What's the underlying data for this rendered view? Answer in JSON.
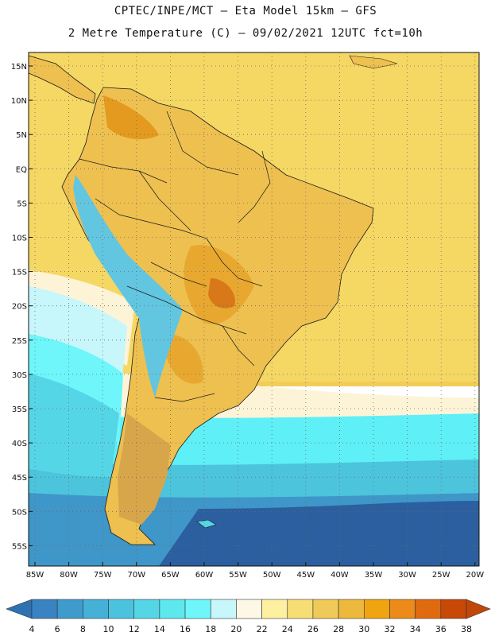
{
  "header": {
    "line1": "CPTEC/INPE/MCT –  Eta Model 15km – GFS",
    "line2": "2 Metre Temperature (C) – 09/02/2021 12UTC fct=10h"
  },
  "map": {
    "lat_labels": [
      "15N",
      "10N",
      "5N",
      "EQ",
      "5S",
      "10S",
      "15S",
      "20S",
      "25S",
      "30S",
      "35S",
      "40S",
      "45S",
      "50S",
      "55S"
    ],
    "lon_labels": [
      "85W",
      "80W",
      "75W",
      "70W",
      "65W",
      "60W",
      "55W",
      "50W",
      "45W",
      "40W",
      "35W",
      "30W",
      "25W",
      "20W"
    ]
  },
  "colorbar": {
    "labels": [
      "4",
      "6",
      "8",
      "10",
      "12",
      "14",
      "16",
      "18",
      "20",
      "22",
      "24",
      "26",
      "28",
      "30",
      "32",
      "34",
      "36",
      "38"
    ],
    "colors": [
      "#2b6bad",
      "#3a83c2",
      "#3f9bcc",
      "#45b1d6",
      "#4cc3de",
      "#55d6e6",
      "#5ee8ee",
      "#6ef6fa",
      "#c7f6fb",
      "#fdf8e6",
      "#fdf0a0",
      "#f7de74",
      "#f0ca58",
      "#ecb93c",
      "#f0a410",
      "#ec8a1a",
      "#e06a10",
      "#c84808"
    ],
    "low_color": "#2e72b2",
    "high_color": "#c04808"
  },
  "field_colors": {
    "ocean_cold": "#2b5f9f",
    "ocean_cool": "#3f96c8",
    "ocean_mid": "#4cc4dc",
    "ocean_cyan": "#5ef0f6",
    "ocean_warm_pale": "#fdf4d8",
    "ocean_warm": "#f8e27a",
    "ocean_hot": "#f1cd58",
    "land": "#eec050",
    "land_hot": "#e49a1e",
    "andes": "#62c6e0",
    "patagonia": "#d8a64a"
  }
}
